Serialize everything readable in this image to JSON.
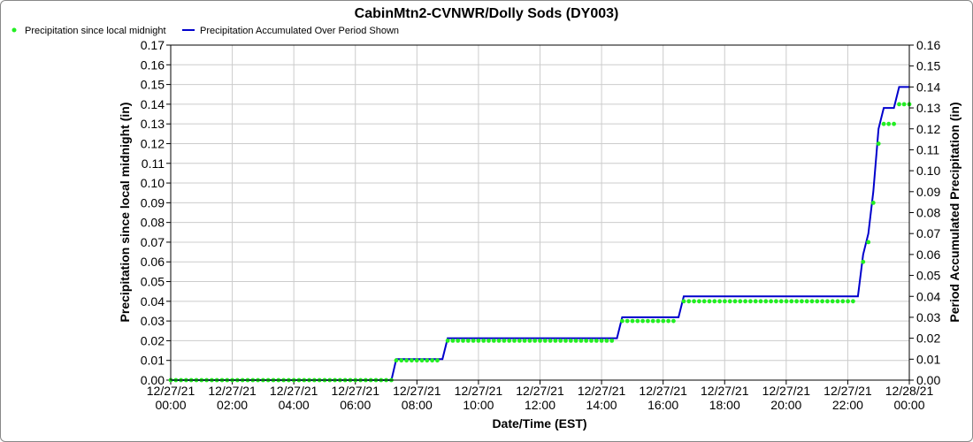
{
  "chart_data": {
    "type": "line",
    "title": "CabinMtn2-CVNWR/Dolly Sods (DY003)",
    "xlabel": "Date/Time (EST)",
    "ylabel_left": "Precipitation since local midnight (in)",
    "ylabel_right": "Period Accumulated Precipitation (in)",
    "x_unit": "hours",
    "xlim": [
      0,
      24
    ],
    "ylim_left": [
      0,
      0.17
    ],
    "ylim_right": [
      0,
      0.16
    ],
    "grid": true,
    "legend_position": "top-left",
    "x_ticks": [
      {
        "hour": 0,
        "date": "12/27/21",
        "time": "00:00"
      },
      {
        "hour": 2,
        "date": "12/27/21",
        "time": "02:00"
      },
      {
        "hour": 4,
        "date": "12/27/21",
        "time": "04:00"
      },
      {
        "hour": 6,
        "date": "12/27/21",
        "time": "06:00"
      },
      {
        "hour": 8,
        "date": "12/27/21",
        "time": "08:00"
      },
      {
        "hour": 10,
        "date": "12/27/21",
        "time": "10:00"
      },
      {
        "hour": 12,
        "date": "12/27/21",
        "time": "12:00"
      },
      {
        "hour": 14,
        "date": "12/27/21",
        "time": "14:00"
      },
      {
        "hour": 16,
        "date": "12/27/21",
        "time": "16:00"
      },
      {
        "hour": 18,
        "date": "12/27/21",
        "time": "18:00"
      },
      {
        "hour": 20,
        "date": "12/27/21",
        "time": "20:00"
      },
      {
        "hour": 22,
        "date": "12/27/21",
        "time": "22:00"
      },
      {
        "hour": 24,
        "date": "12/28/21",
        "time": "00:00"
      }
    ],
    "y_ticks_left": [
      "0.00",
      "0.01",
      "0.02",
      "0.03",
      "0.04",
      "0.05",
      "0.06",
      "0.07",
      "0.08",
      "0.09",
      "0.10",
      "0.11",
      "0.12",
      "0.13",
      "0.14",
      "0.15",
      "0.16",
      "0.17"
    ],
    "y_ticks_right": [
      "0.00",
      "0.01",
      "0.02",
      "0.03",
      "0.04",
      "0.05",
      "0.06",
      "0.07",
      "0.08",
      "0.09",
      "0.10",
      "0.11",
      "0.12",
      "0.13",
      "0.14",
      "0.15",
      "0.16"
    ],
    "series": [
      {
        "name": "Precipitation since local midnight",
        "axis": "left",
        "style": "points",
        "color": "#22ee22",
        "segments": [
          {
            "start_hour": 0.0,
            "end_hour": 7.17,
            "step_hours": 0.1667,
            "value": 0.0
          },
          {
            "start_hour": 7.33,
            "end_hour": 8.83,
            "step_hours": 0.1667,
            "value": 0.01
          },
          {
            "start_hour": 9.0,
            "end_hour": 14.5,
            "step_hours": 0.1667,
            "value": 0.02
          },
          {
            "start_hour": 14.67,
            "end_hour": 16.5,
            "step_hours": 0.1667,
            "value": 0.03
          },
          {
            "start_hour": 16.67,
            "end_hour": 22.33,
            "step_hours": 0.1667,
            "value": 0.04
          }
        ],
        "points": [
          {
            "hour": 22.5,
            "value": 0.06
          },
          {
            "hour": 22.67,
            "value": 0.07
          },
          {
            "hour": 22.83,
            "value": 0.09
          },
          {
            "hour": 23.0,
            "value": 0.12
          },
          {
            "hour": 23.17,
            "value": 0.13
          },
          {
            "hour": 23.33,
            "value": 0.13
          },
          {
            "hour": 23.5,
            "value": 0.13
          },
          {
            "hour": 23.67,
            "value": 0.14
          },
          {
            "hour": 23.83,
            "value": 0.14
          },
          {
            "hour": 24.0,
            "value": 0.14
          }
        ]
      },
      {
        "name": "Precipitation Accumulated Over Period Shown",
        "axis": "right",
        "style": "line",
        "color": "#0000cc",
        "points": [
          [
            0.0,
            0.0
          ],
          [
            7.17,
            0.0
          ],
          [
            7.33,
            0.01
          ],
          [
            8.83,
            0.01
          ],
          [
            9.0,
            0.02
          ],
          [
            14.5,
            0.02
          ],
          [
            14.67,
            0.03
          ],
          [
            16.5,
            0.03
          ],
          [
            16.67,
            0.04
          ],
          [
            22.33,
            0.04
          ],
          [
            22.5,
            0.06
          ],
          [
            22.67,
            0.07
          ],
          [
            22.83,
            0.09
          ],
          [
            23.0,
            0.12
          ],
          [
            23.17,
            0.13
          ],
          [
            23.5,
            0.13
          ],
          [
            23.67,
            0.14
          ],
          [
            24.0,
            0.14
          ]
        ]
      }
    ]
  }
}
